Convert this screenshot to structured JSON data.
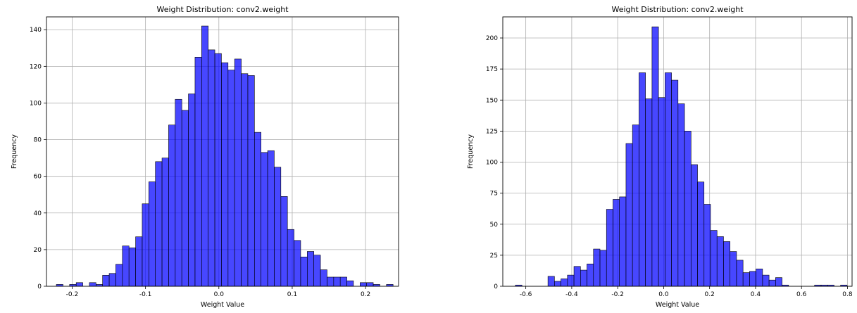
{
  "chart_data": [
    {
      "type": "bar",
      "title": "Weight Distribution: conv2.weight",
      "xlabel": "Weight Value",
      "ylabel": "Frequency",
      "xlim": [
        -0.235,
        0.245
      ],
      "ylim": [
        0,
        147
      ],
      "xticks": [
        -0.2,
        -0.1,
        0.0,
        0.1,
        0.2
      ],
      "xtick_labels": [
        "-0.2",
        "-0.1",
        "0.0",
        "0.1",
        "0.2"
      ],
      "yticks": [
        0,
        20,
        40,
        60,
        80,
        100,
        120,
        140
      ],
      "ytick_labels": [
        "0",
        "20",
        "40",
        "60",
        "80",
        "100",
        "120",
        "140"
      ],
      "grid": true,
      "bar_color": "#0000ff",
      "edge_color": "#000000",
      "bin_start": -0.2215,
      "bin_width": 0.009,
      "counts": [
        1,
        0,
        1,
        2,
        0,
        2,
        1,
        6,
        7,
        12,
        22,
        21,
        27,
        45,
        57,
        68,
        70,
        88,
        102,
        96,
        105,
        125,
        142,
        129,
        127,
        122,
        118,
        124,
        116,
        115,
        84,
        73,
        74,
        65,
        49,
        31,
        25,
        16,
        19,
        17,
        9,
        5,
        5,
        5,
        3,
        0,
        2,
        2,
        1,
        0,
        1
      ]
    },
    {
      "type": "bar",
      "title": "Weight Distribution: conv2.weight",
      "xlabel": "Weight Value",
      "ylabel": "Frequency",
      "xlim": [
        -0.7,
        0.82
      ],
      "ylim": [
        0,
        217
      ],
      "xticks": [
        -0.6,
        -0.4,
        -0.2,
        0.0,
        0.2,
        0.4,
        0.6,
        0.8
      ],
      "xtick_labels": [
        "-0.6",
        "-0.4",
        "-0.2",
        "0.0",
        "0.2",
        "0.4",
        "0.6",
        "0.8"
      ],
      "yticks": [
        0,
        25,
        50,
        75,
        100,
        125,
        150,
        175,
        200
      ],
      "ytick_labels": [
        "0",
        "25",
        "50",
        "75",
        "100",
        "125",
        "150",
        "175",
        "200"
      ],
      "grid": true,
      "bar_color": "#0000ff",
      "edge_color": "#000000",
      "bin_start": -0.645,
      "bin_width": 0.0283,
      "counts": [
        1,
        0,
        0,
        0,
        0,
        8,
        4,
        6,
        9,
        16,
        13,
        18,
        30,
        29,
        62,
        70,
        72,
        115,
        130,
        172,
        151,
        209,
        152,
        172,
        166,
        147,
        125,
        98,
        84,
        66,
        45,
        40,
        36,
        28,
        21,
        11,
        12,
        14,
        9,
        5,
        7,
        1,
        0,
        0,
        0,
        0,
        1,
        1,
        1,
        0,
        1
      ]
    }
  ]
}
